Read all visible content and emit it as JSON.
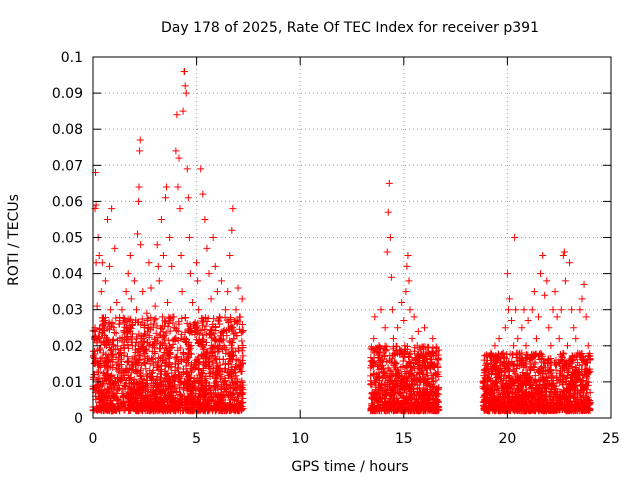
{
  "chart_data": {
    "type": "scatter",
    "title": "Day 178 of 2025, Rate Of TEC Index for receiver p391",
    "xlabel": "GPS time / hours",
    "ylabel": "ROTI / TECUs",
    "xlim": [
      0,
      25
    ],
    "ylim": [
      0,
      0.1
    ],
    "xticks": [
      0,
      5,
      10,
      15,
      20,
      25
    ],
    "yticks": [
      0,
      0.01,
      0.02,
      0.03,
      0.04,
      0.05,
      0.06,
      0.07,
      0.08,
      0.09,
      0.1
    ],
    "xtick_labels": [
      "0",
      "5",
      "10",
      "15",
      "20",
      "25"
    ],
    "ytick_labels": [
      "0",
      "0.01",
      "0.02",
      "0.03",
      "0.04",
      "0.05",
      "0.06",
      "0.07",
      "0.08",
      "0.09",
      "0.1"
    ],
    "grid": true,
    "marker": "+",
    "marker_color": "#ff0000",
    "series": [
      {
        "points": [
          [
            0.0,
            0.008
          ],
          [
            0.05,
            0.012
          ],
          [
            0.1,
            0.025
          ],
          [
            0.1,
            0.058
          ],
          [
            0.12,
            0.068
          ],
          [
            0.15,
            0.043
          ],
          [
            0.15,
            0.059
          ],
          [
            0.2,
            0.031
          ],
          [
            0.22,
            0.015
          ],
          [
            0.25,
            0.05
          ],
          [
            0.3,
            0.022
          ],
          [
            0.3,
            0.045
          ],
          [
            0.35,
            0.009
          ],
          [
            0.4,
            0.035
          ],
          [
            0.45,
            0.043
          ],
          [
            0.5,
            0.018
          ],
          [
            0.55,
            0.027
          ],
          [
            0.6,
            0.038
          ],
          [
            0.65,
            0.012
          ],
          [
            0.7,
            0.055
          ],
          [
            0.75,
            0.021
          ],
          [
            0.8,
            0.042
          ],
          [
            0.85,
            0.03
          ],
          [
            0.9,
            0.058
          ],
          [
            0.95,
            0.014
          ],
          [
            1.0,
            0.025
          ],
          [
            1.05,
            0.047
          ],
          [
            1.1,
            0.019
          ],
          [
            1.15,
            0.032
          ],
          [
            1.2,
            0.011
          ],
          [
            1.3,
            0.022
          ],
          [
            1.4,
            0.03
          ],
          [
            1.5,
            0.018
          ],
          [
            1.6,
            0.035
          ],
          [
            1.7,
            0.04
          ],
          [
            1.75,
            0.025
          ],
          [
            1.8,
            0.045
          ],
          [
            1.85,
            0.033
          ],
          [
            1.9,
            0.02
          ],
          [
            2.0,
            0.038
          ],
          [
            2.05,
            0.015
          ],
          [
            2.1,
            0.03
          ],
          [
            2.15,
            0.051
          ],
          [
            2.2,
            0.06
          ],
          [
            2.22,
            0.064
          ],
          [
            2.25,
            0.074
          ],
          [
            2.28,
            0.077
          ],
          [
            2.3,
            0.048
          ],
          [
            2.35,
            0.022
          ],
          [
            2.4,
            0.035
          ],
          [
            2.5,
            0.019
          ],
          [
            2.6,
            0.029
          ],
          [
            2.7,
            0.043
          ],
          [
            2.8,
            0.036
          ],
          [
            2.9,
            0.025
          ],
          [
            3.0,
            0.031
          ],
          [
            3.1,
            0.048
          ],
          [
            3.15,
            0.042
          ],
          [
            3.2,
            0.038
          ],
          [
            3.3,
            0.055
          ],
          [
            3.35,
            0.028
          ],
          [
            3.4,
            0.045
          ],
          [
            3.5,
            0.061
          ],
          [
            3.55,
            0.064
          ],
          [
            3.6,
            0.032
          ],
          [
            3.7,
            0.05
          ],
          [
            3.8,
            0.042
          ],
          [
            3.9,
            0.028
          ],
          [
            4.0,
            0.074
          ],
          [
            4.05,
            0.084
          ],
          [
            4.1,
            0.064
          ],
          [
            4.15,
            0.072
          ],
          [
            4.2,
            0.058
          ],
          [
            4.25,
            0.045
          ],
          [
            4.3,
            0.035
          ],
          [
            4.35,
            0.085
          ],
          [
            4.4,
            0.096
          ],
          [
            4.42,
            0.096
          ],
          [
            4.45,
            0.092
          ],
          [
            4.5,
            0.09
          ],
          [
            4.55,
            0.069
          ],
          [
            4.6,
            0.061
          ],
          [
            4.65,
            0.05
          ],
          [
            4.7,
            0.04
          ],
          [
            4.8,
            0.032
          ],
          [
            4.9,
            0.026
          ],
          [
            5.0,
            0.043
          ],
          [
            5.05,
            0.038
          ],
          [
            5.1,
            0.03
          ],
          [
            5.2,
            0.069
          ],
          [
            5.3,
            0.062
          ],
          [
            5.4,
            0.055
          ],
          [
            5.5,
            0.047
          ],
          [
            5.6,
            0.04
          ],
          [
            5.7,
            0.033
          ],
          [
            5.8,
            0.05
          ],
          [
            5.9,
            0.042
          ],
          [
            6.0,
            0.035
          ],
          [
            6.1,
            0.028
          ],
          [
            6.2,
            0.038
          ],
          [
            6.3,
            0.024
          ],
          [
            6.4,
            0.03
          ],
          [
            6.5,
            0.035
          ],
          [
            6.6,
            0.045
          ],
          [
            6.7,
            0.052
          ],
          [
            6.75,
            0.058
          ],
          [
            6.8,
            0.022
          ],
          [
            6.9,
            0.03
          ],
          [
            7.0,
            0.036
          ],
          [
            7.1,
            0.028
          ],
          [
            7.2,
            0.033
          ],
          [
            5.9,
            0.002
          ],
          [
            6.1,
            0.003
          ],
          [
            13.5,
            0.015
          ],
          [
            13.55,
            0.022
          ],
          [
            13.6,
            0.028
          ],
          [
            13.7,
            0.012
          ],
          [
            13.8,
            0.02
          ],
          [
            13.9,
            0.03
          ],
          [
            14.0,
            0.018
          ],
          [
            14.1,
            0.025
          ],
          [
            14.2,
            0.046
          ],
          [
            14.25,
            0.057
          ],
          [
            14.3,
            0.065
          ],
          [
            14.35,
            0.05
          ],
          [
            14.4,
            0.039
          ],
          [
            14.45,
            0.03
          ],
          [
            14.5,
            0.022
          ],
          [
            14.6,
            0.015
          ],
          [
            14.7,
            0.025
          ],
          [
            14.8,
            0.018
          ],
          [
            14.9,
            0.032
          ],
          [
            15.0,
            0.027
          ],
          [
            15.05,
            0.02
          ],
          [
            15.1,
            0.035
          ],
          [
            15.15,
            0.042
          ],
          [
            15.2,
            0.045
          ],
          [
            15.25,
            0.038
          ],
          [
            15.3,
            0.03
          ],
          [
            15.4,
            0.022
          ],
          [
            15.5,
            0.028
          ],
          [
            15.6,
            0.016
          ],
          [
            15.7,
            0.024
          ],
          [
            15.8,
            0.019
          ],
          [
            15.9,
            0.012
          ],
          [
            16.0,
            0.025
          ],
          [
            16.2,
            0.018
          ],
          [
            16.4,
            0.022
          ],
          [
            16.6,
            0.015
          ],
          [
            19.0,
            0.015
          ],
          [
            19.1,
            0.012
          ],
          [
            19.2,
            0.018
          ],
          [
            19.3,
            0.01
          ],
          [
            19.4,
            0.02
          ],
          [
            19.5,
            0.016
          ],
          [
            19.6,
            0.022
          ],
          [
            19.7,
            0.013
          ],
          [
            19.8,
            0.018
          ],
          [
            19.9,
            0.025
          ],
          [
            20.0,
            0.04
          ],
          [
            20.05,
            0.03
          ],
          [
            20.1,
            0.033
          ],
          [
            20.2,
            0.027
          ],
          [
            20.3,
            0.02
          ],
          [
            20.35,
            0.05
          ],
          [
            20.4,
            0.03
          ],
          [
            20.5,
            0.022
          ],
          [
            20.6,
            0.018
          ],
          [
            20.7,
            0.025
          ],
          [
            20.8,
            0.03
          ],
          [
            20.9,
            0.02
          ],
          [
            21.0,
            0.027
          ],
          [
            21.1,
            0.015
          ],
          [
            21.2,
            0.03
          ],
          [
            21.3,
            0.035
          ],
          [
            21.4,
            0.022
          ],
          [
            21.5,
            0.028
          ],
          [
            21.6,
            0.04
          ],
          [
            21.7,
            0.045
          ],
          [
            21.8,
            0.034
          ],
          [
            21.9,
            0.038
          ],
          [
            22.0,
            0.025
          ],
          [
            22.1,
            0.02
          ],
          [
            22.2,
            0.03
          ],
          [
            22.3,
            0.035
          ],
          [
            22.4,
            0.028
          ],
          [
            22.5,
            0.022
          ],
          [
            22.6,
            0.03
          ],
          [
            22.7,
            0.045
          ],
          [
            22.75,
            0.046
          ],
          [
            22.8,
            0.038
          ],
          [
            22.9,
            0.02
          ],
          [
            23.0,
            0.043
          ],
          [
            23.1,
            0.03
          ],
          [
            23.2,
            0.025
          ],
          [
            23.3,
            0.022
          ],
          [
            23.4,
            0.018
          ],
          [
            23.5,
            0.03
          ],
          [
            23.6,
            0.033
          ],
          [
            23.7,
            0.037
          ],
          [
            23.8,
            0.028
          ],
          [
            23.9,
            0.02
          ]
        ],
        "dense_bands": [
          {
            "x_start": 0.0,
            "x_end": 7.25,
            "y_low": 0.002,
            "y_high": 0.028
          },
          {
            "x_start": 13.4,
            "x_end": 16.7,
            "y_low": 0.002,
            "y_high": 0.02
          },
          {
            "x_start": 18.8,
            "x_end": 24.0,
            "y_low": 0.002,
            "y_high": 0.018
          }
        ]
      }
    ]
  }
}
